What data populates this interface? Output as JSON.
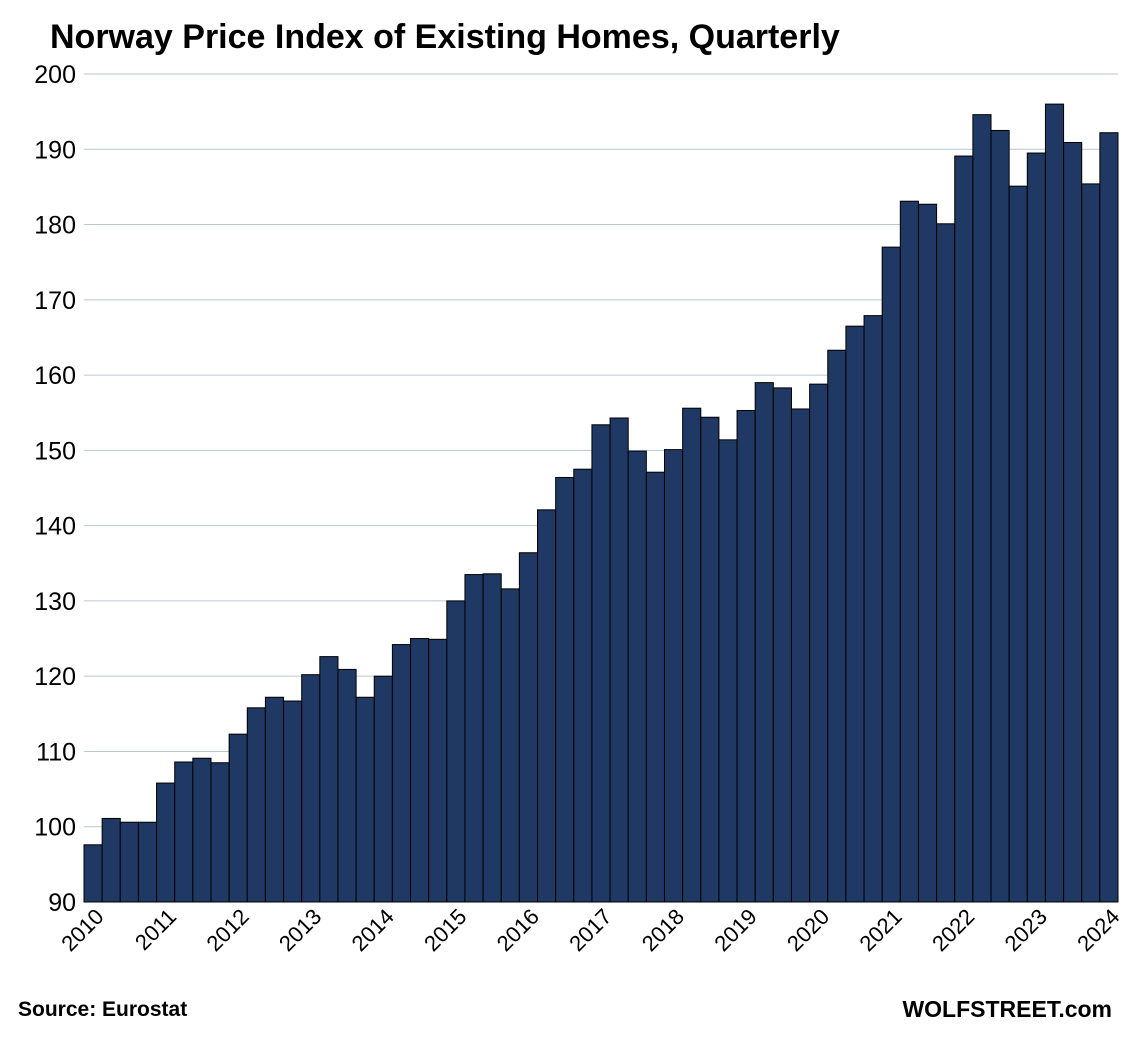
{
  "chart_data": {
    "type": "bar",
    "title": "Norway Price Index of Existing Homes, Quarterly",
    "xlabel": "",
    "ylabel": "",
    "ylim": [
      90,
      200
    ],
    "yticks": [
      "90",
      "100",
      "110",
      "120",
      "130",
      "140",
      "150",
      "160",
      "170",
      "180",
      "190",
      "200"
    ],
    "xtick_labels": [
      "2010",
      "2011",
      "2012",
      "2013",
      "2014",
      "2015",
      "2016",
      "2017",
      "2018",
      "2019",
      "2020",
      "2021",
      "2022",
      "2023",
      "2024"
    ],
    "grid": true,
    "bar_color": "#1f3864",
    "categories": [
      "2010Q1",
      "2010Q2",
      "2010Q3",
      "2010Q4",
      "2011Q1",
      "2011Q2",
      "2011Q3",
      "2011Q4",
      "2012Q1",
      "2012Q2",
      "2012Q3",
      "2012Q4",
      "2013Q1",
      "2013Q2",
      "2013Q3",
      "2013Q4",
      "2014Q1",
      "2014Q2",
      "2014Q3",
      "2014Q4",
      "2015Q1",
      "2015Q2",
      "2015Q3",
      "2015Q4",
      "2016Q1",
      "2016Q2",
      "2016Q3",
      "2016Q4",
      "2017Q1",
      "2017Q2",
      "2017Q3",
      "2017Q4",
      "2018Q1",
      "2018Q2",
      "2018Q3",
      "2018Q4",
      "2019Q1",
      "2019Q2",
      "2019Q3",
      "2019Q4",
      "2020Q1",
      "2020Q2",
      "2020Q3",
      "2020Q4",
      "2021Q1",
      "2021Q2",
      "2021Q3",
      "2021Q4",
      "2022Q1",
      "2022Q2",
      "2022Q3",
      "2022Q4",
      "2023Q1",
      "2023Q2",
      "2023Q3",
      "2023Q4",
      "2024Q1"
    ],
    "values": [
      97.6,
      101.1,
      100.6,
      100.6,
      105.8,
      108.6,
      109.1,
      108.5,
      112.3,
      115.8,
      117.2,
      116.7,
      120.2,
      122.6,
      120.9,
      117.2,
      120.0,
      124.2,
      125.0,
      124.9,
      130.0,
      133.5,
      133.6,
      131.6,
      136.4,
      142.1,
      146.4,
      147.5,
      153.4,
      154.3,
      149.9,
      147.1,
      150.1,
      155.6,
      154.4,
      151.4,
      155.3,
      159.0,
      158.3,
      155.5,
      158.8,
      163.3,
      166.5,
      167.9,
      177.0,
      183.1,
      182.7,
      180.1,
      189.1,
      194.6,
      192.5,
      185.1,
      189.5,
      196.0,
      190.9,
      185.4,
      192.2
    ]
  },
  "footer": {
    "source": "Source: Eurostat",
    "brand": "WOLFSTREET.com"
  }
}
